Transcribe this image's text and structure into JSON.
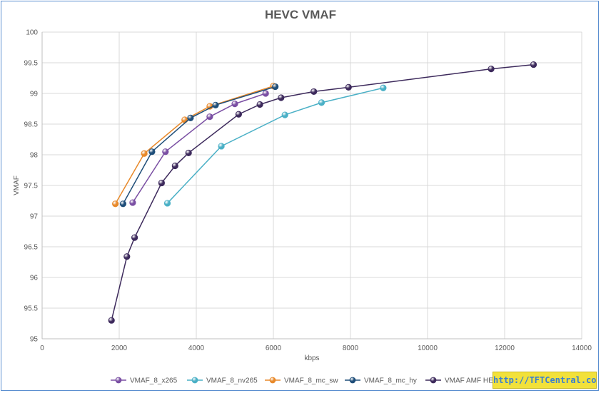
{
  "chart_data": {
    "type": "line",
    "title": "HEVC VMAF",
    "xlabel": "kbps",
    "ylabel": "VMAF",
    "xlim": [
      0,
      14000
    ],
    "ylim": [
      95,
      100
    ],
    "x_ticks": [
      0,
      2000,
      4000,
      6000,
      8000,
      10000,
      12000,
      14000
    ],
    "y_ticks": [
      95,
      95.5,
      96,
      96.5,
      97,
      97.5,
      98,
      98.5,
      99,
      99.5,
      100
    ],
    "x_tick_labels": [
      "0",
      "2000",
      "4000",
      "6000",
      "8000",
      "10000",
      "12000",
      "14000"
    ],
    "y_tick_labels": [
      "95",
      "95.5",
      "96",
      "96.5",
      "97",
      "97.5",
      "98",
      "98.5",
      "99",
      "99.5",
      "100"
    ],
    "grid": true,
    "legend_position": "bottom",
    "series": [
      {
        "name": "VMAF_8_x265",
        "color": "#7a4fa3",
        "points": [
          [
            2350,
            97.22
          ],
          [
            3200,
            98.05
          ],
          [
            4350,
            98.62
          ],
          [
            5000,
            98.83
          ],
          [
            5800,
            99.0
          ]
        ]
      },
      {
        "name": "VMAF_8_nv265",
        "color": "#4ab0c6",
        "points": [
          [
            3250,
            97.21
          ],
          [
            4650,
            98.14
          ],
          [
            6300,
            98.65
          ],
          [
            7250,
            98.85
          ],
          [
            8850,
            99.09
          ]
        ]
      },
      {
        "name": "VMAF_8_mc_sw",
        "color": "#e8892a",
        "points": [
          [
            1900,
            97.2
          ],
          [
            2650,
            98.02
          ],
          [
            3700,
            98.57
          ],
          [
            4350,
            98.79
          ],
          [
            6000,
            99.12
          ]
        ]
      },
      {
        "name": "VMAF_8_mc_hy",
        "color": "#1f4e79",
        "points": [
          [
            2100,
            97.2
          ],
          [
            2850,
            98.05
          ],
          [
            3850,
            98.6
          ],
          [
            4500,
            98.81
          ],
          [
            6050,
            99.11
          ]
        ]
      },
      {
        "name": "VMAF AMF HEVC",
        "color": "#3d2a5c",
        "points": [
          [
            1800,
            95.3
          ],
          [
            2200,
            96.34
          ],
          [
            2400,
            96.65
          ],
          [
            3100,
            97.54
          ],
          [
            3450,
            97.82
          ],
          [
            3800,
            98.03
          ],
          [
            5100,
            98.66
          ],
          [
            5650,
            98.82
          ],
          [
            6200,
            98.93
          ],
          [
            7050,
            99.03
          ],
          [
            7950,
            99.1
          ],
          [
            11650,
            99.4
          ],
          [
            12750,
            99.47
          ]
        ]
      }
    ]
  },
  "watermark": {
    "text": "http://TFTCentral.co.uk"
  }
}
